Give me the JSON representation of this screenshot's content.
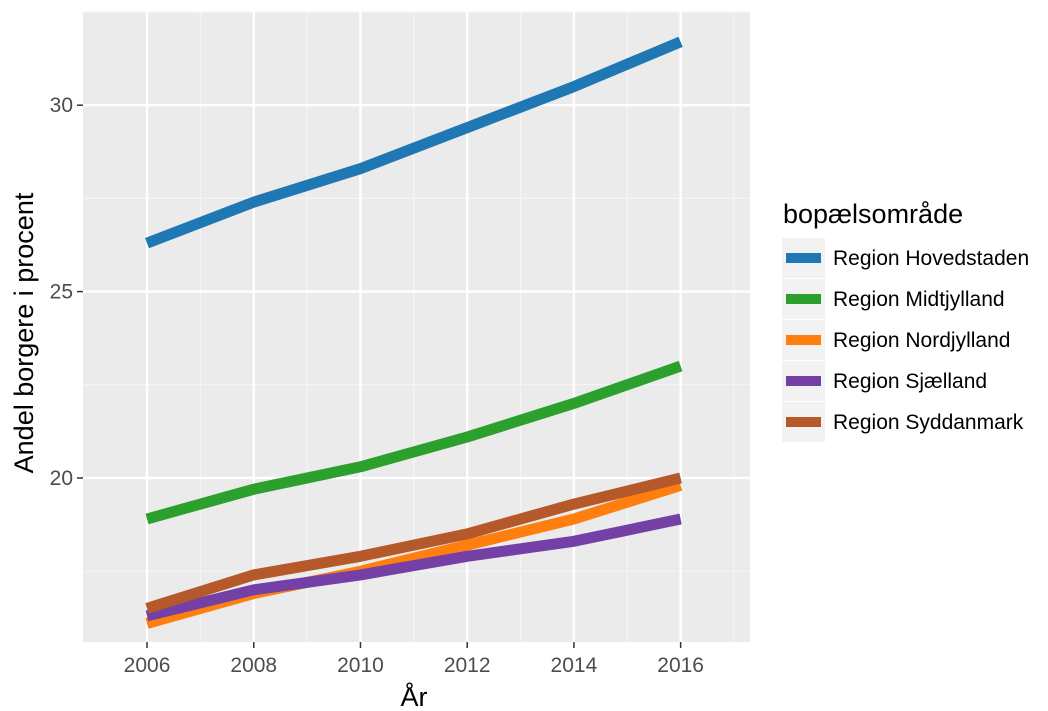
{
  "chart_data": {
    "type": "line",
    "x": [
      2006,
      2008,
      2010,
      2012,
      2014,
      2016
    ],
    "xlim": [
      2004.8,
      2017.3
    ],
    "ylim": [
      15.6,
      32.5
    ],
    "x_ticks": [
      2006,
      2008,
      2010,
      2012,
      2014,
      2016
    ],
    "y_ticks": [
      20,
      25,
      30
    ],
    "x_minor_ticks": [
      2007,
      2009,
      2011,
      2013,
      2015,
      2017
    ],
    "y_minor_ticks": [
      17.5,
      22.5,
      27.5,
      32.5
    ],
    "xlabel": "År",
    "ylabel": "Andel borgere i procent",
    "grid": true,
    "legend": {
      "title": "bopælsområde",
      "position": "right"
    },
    "series": [
      {
        "name": "Region Hovedstaden",
        "color": "#1f77b4",
        "values": [
          26.3,
          27.4,
          28.3,
          29.4,
          30.5,
          31.7
        ]
      },
      {
        "name": "Region Midtjylland",
        "color": "#2ca02c",
        "values": [
          18.9,
          19.7,
          20.3,
          21.1,
          22.0,
          23.0
        ]
      },
      {
        "name": "Region Nordjylland",
        "color": "#ff7f0e",
        "values": [
          16.1,
          16.9,
          17.5,
          18.2,
          18.9,
          19.8
        ]
      },
      {
        "name": "Region Sjælland",
        "color": "#7440a6",
        "values": [
          16.3,
          17.0,
          17.4,
          17.9,
          18.3,
          18.9
        ]
      },
      {
        "name": "Region Syddanmark",
        "color": "#b5582a",
        "values": [
          16.5,
          17.4,
          17.9,
          18.5,
          19.3,
          20.0
        ]
      }
    ]
  }
}
